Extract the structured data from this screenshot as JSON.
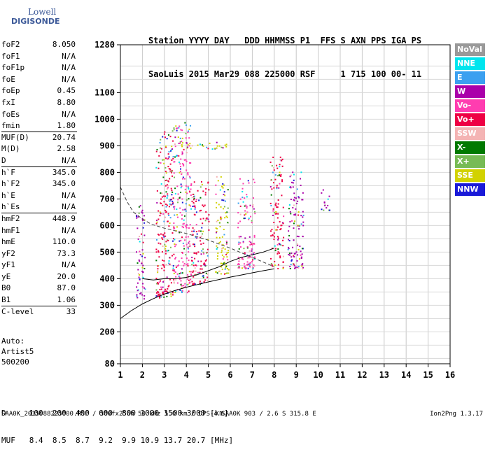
{
  "logo": {
    "line1": "Lowell",
    "line2": "DIGISONDE"
  },
  "header": {
    "line1": "Station YYYY DAY   DDD HHMMSS P1  FFS S AXN PPS IGA PS",
    "line2": "SaoLuis 2015 Mar29 088 225000 RSF     1 715 100 00- 11"
  },
  "params": [
    {
      "name": "foF2",
      "value": "8.050"
    },
    {
      "name": "foF1",
      "value": "N/A"
    },
    {
      "name": "foF1p",
      "value": "N/A"
    },
    {
      "name": "foE",
      "value": "N/A"
    },
    {
      "name": "foEp",
      "value": "0.45"
    },
    {
      "name": "fxI",
      "value": "8.80"
    },
    {
      "name": "foEs",
      "value": "N/A"
    },
    {
      "name": "fmin",
      "value": "1.80"
    },
    {
      "name": "MUF(D)",
      "value": "20.74"
    },
    {
      "name": "M(D)",
      "value": "2.58"
    },
    {
      "name": "D",
      "value": "N/A"
    },
    {
      "name": "h`F",
      "value": "345.0"
    },
    {
      "name": "h`F2",
      "value": "345.0"
    },
    {
      "name": "h`E",
      "value": "N/A"
    },
    {
      "name": "h`Es",
      "value": "N/A"
    },
    {
      "name": "hmF2",
      "value": "448.9"
    },
    {
      "name": "hmF1",
      "value": "N/A"
    },
    {
      "name": "hmE",
      "value": "110.0"
    },
    {
      "name": "yF2",
      "value": "73.3"
    },
    {
      "name": "yF1",
      "value": "N/A"
    },
    {
      "name": "yE",
      "value": "20.0"
    },
    {
      "name": "B0",
      "value": "87.0"
    },
    {
      "name": "B1",
      "value": "1.06"
    },
    {
      "name": "C-level",
      "value": "33"
    }
  ],
  "auto": {
    "line1": "Auto:",
    "line2": "Artist5",
    "line3": "500200"
  },
  "dmuf": {
    "d_row": "D     100  200  400  600  800 1000 1500 3000 [km]",
    "muf_row": "MUF   8.4  8.5  8.7  9.2  9.9 10.9 13.7 20.7 [MHz]"
  },
  "footer": {
    "left": "SAA0K_2015088225000.RSF / 300fx256h 50 kHz 5.0 km / DPS-4 SAA0K 903 / 2.6 S 315.8 E",
    "right": "Ion2Png 1.3.17"
  },
  "legend": [
    {
      "label": "NoVal",
      "color": "#999999"
    },
    {
      "label": "NNE",
      "color": "#00e5ee"
    },
    {
      "label": "E",
      "color": "#3ba0f0"
    },
    {
      "label": "W",
      "color": "#aa00aa"
    },
    {
      "label": "Vo-",
      "color": "#ff3db0"
    },
    {
      "label": "Vo+",
      "color": "#ee0044"
    },
    {
      "label": "SSW",
      "color": "#f4b4b4"
    },
    {
      "label": "X-",
      "color": "#007a00"
    },
    {
      "label": "X+",
      "color": "#77bb55"
    },
    {
      "label": "SSE",
      "color": "#d2d200"
    },
    {
      "label": "NNW",
      "color": "#1a1ad8"
    }
  ],
  "chart_data": {
    "type": "scatter",
    "xlim": [
      1,
      16
    ],
    "ylim": [
      80,
      1280
    ],
    "x_ticks": [
      "1",
      "2",
      "3",
      "4",
      "5",
      "6",
      "7",
      "8",
      "9",
      "10",
      "11",
      "12",
      "13",
      "14",
      "15",
      "16"
    ],
    "y_ticks": [
      "80",
      "200",
      "300",
      "400",
      "500",
      "600",
      "700",
      "800",
      "900",
      "1000",
      "1100",
      "1280"
    ],
    "grid": true,
    "clusters": [
      {
        "x": [
          1.7,
          2.1
        ],
        "y": [
          320,
          680
        ],
        "color": "#aa00aa"
      },
      {
        "x": [
          2.6,
          3.4
        ],
        "y": [
          330,
          960
        ],
        "color": "#ee0044"
      },
      {
        "x": [
          3.4,
          4.2
        ],
        "y": [
          350,
          1000
        ],
        "color": "#ff3db0"
      },
      {
        "x": [
          4.2,
          5.0
        ],
        "y": [
          380,
          780
        ],
        "color": "#ee0044"
      },
      {
        "x": [
          5.3,
          5.9
        ],
        "y": [
          420,
          790
        ],
        "color": "#d2d200"
      },
      {
        "x": [
          6.3,
          7.1
        ],
        "y": [
          440,
          780
        ],
        "color": "#ff3db0"
      },
      {
        "x": [
          7.8,
          8.4
        ],
        "y": [
          440,
          860
        ],
        "color": "#ee0044"
      },
      {
        "x": [
          8.6,
          9.3
        ],
        "y": [
          440,
          810
        ],
        "color": "#aa00aa"
      },
      {
        "x": [
          10.1,
          10.5
        ],
        "y": [
          660,
          740
        ],
        "color": "#aa00aa"
      },
      {
        "x": [
          3.0,
          5.8
        ],
        "y": [
          890,
          915
        ],
        "color": "#d2d200"
      }
    ],
    "profile_curve": {
      "x": [
        1.0,
        1.5,
        2.0,
        2.5,
        3.0,
        3.5,
        4.0,
        4.5,
        5.0,
        5.5,
        6.0,
        6.5,
        7.0,
        7.5,
        8.0
      ],
      "y": [
        250,
        280,
        305,
        325,
        342,
        356,
        368,
        378,
        388,
        397,
        406,
        414,
        422,
        430,
        437
      ]
    },
    "virtual_trace": {
      "x": [
        2.0,
        2.5,
        3.0,
        3.5,
        4.0,
        4.5,
        5.0,
        5.5,
        6.0,
        6.5,
        7.0,
        7.5,
        8.0
      ],
      "y": [
        400,
        395,
        400,
        400,
        405,
        415,
        430,
        445,
        465,
        480,
        490,
        500,
        515
      ]
    },
    "dashed_curve": {
      "x": [
        1.0,
        1.3,
        1.6,
        2.0,
        2.4,
        3.0,
        4.0,
        5.0,
        6.0,
        7.0,
        8.0
      ],
      "y": [
        745,
        690,
        650,
        625,
        605,
        590,
        570,
        545,
        515,
        480,
        445
      ]
    }
  }
}
